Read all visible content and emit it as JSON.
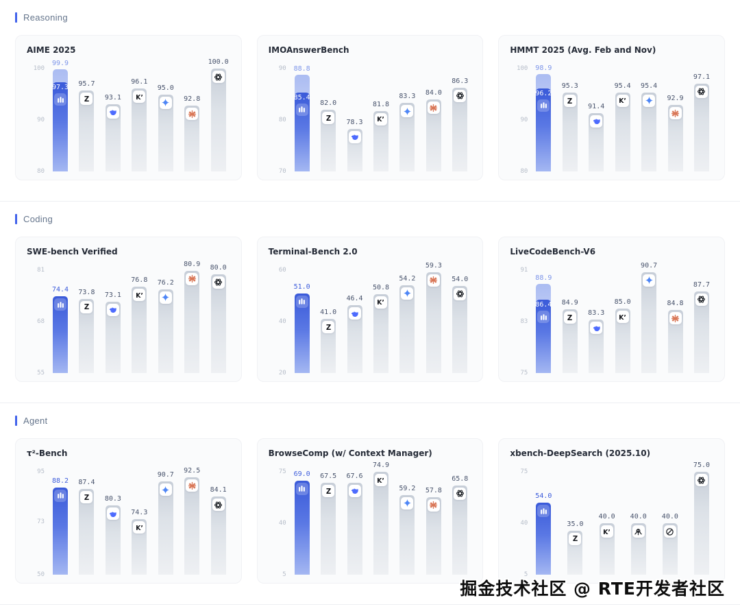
{
  "watermark": "掘金技术社区 @ RTE开发者社区",
  "colors": {
    "accent": "#4263eb",
    "highlight_bar": "#3a5ad9",
    "ghost_bar": "#7a95ec",
    "gray_bar": "#dde2e8",
    "value_text": "#47526b",
    "tick_text": "#b6bdc9",
    "claude_orange": "#d97757",
    "gemini_blue": "#4e86f6",
    "deepseek_blue": "#4d6bfe"
  },
  "sections": [
    {
      "label": "Reasoning"
    },
    {
      "label": "Coding"
    },
    {
      "label": "Agent"
    }
  ],
  "chart_data": [
    {
      "section": "Reasoning",
      "type": "bar",
      "title": "AIME 2025",
      "ylim": [
        80,
        100
      ],
      "yticks": [
        100,
        90,
        80
      ],
      "grid": false,
      "legend": "none",
      "bars": [
        {
          "icon": "primary-model-icon",
          "value": 97.3,
          "aux_value": 99.9,
          "highlight": true
        },
        {
          "icon": "glm-z-icon",
          "value": 95.7
        },
        {
          "icon": "deepseek-whale-icon",
          "value": 93.1
        },
        {
          "icon": "kimi-k-icon",
          "value": 96.1
        },
        {
          "icon": "gemini-star-icon",
          "value": 95.0
        },
        {
          "icon": "claude-burst-icon",
          "value": 92.8
        },
        {
          "icon": "openai-icon",
          "value": 100.0
        }
      ]
    },
    {
      "section": "Reasoning",
      "type": "bar",
      "title": "IMOAnswerBench",
      "ylim": [
        70,
        90
      ],
      "yticks": [
        90,
        80,
        70
      ],
      "grid": false,
      "legend": "none",
      "bars": [
        {
          "icon": "primary-model-icon",
          "value": 85.4,
          "aux_value": 88.8,
          "highlight": true
        },
        {
          "icon": "glm-z-icon",
          "value": 82.0
        },
        {
          "icon": "deepseek-whale-icon",
          "value": 78.3
        },
        {
          "icon": "kimi-k-icon",
          "value": 81.8
        },
        {
          "icon": "gemini-star-icon",
          "value": 83.3
        },
        {
          "icon": "claude-burst-icon",
          "value": 84.0
        },
        {
          "icon": "openai-icon",
          "value": 86.3
        }
      ]
    },
    {
      "section": "Reasoning",
      "type": "bar",
      "title": "HMMT 2025 (Avg. Feb and Nov)",
      "ylim": [
        80,
        100
      ],
      "yticks": [
        100,
        90,
        80
      ],
      "grid": false,
      "legend": "none",
      "bars": [
        {
          "icon": "primary-model-icon",
          "value": 96.2,
          "aux_value": 98.9,
          "highlight": true
        },
        {
          "icon": "glm-z-icon",
          "value": 95.3
        },
        {
          "icon": "deepseek-whale-icon",
          "value": 91.4
        },
        {
          "icon": "kimi-k-icon",
          "value": 95.4
        },
        {
          "icon": "gemini-star-icon",
          "value": 95.4
        },
        {
          "icon": "claude-burst-icon",
          "value": 92.9
        },
        {
          "icon": "openai-icon",
          "value": 97.1
        }
      ]
    },
    {
      "section": "Coding",
      "type": "bar",
      "title": "SWE-bench Verified",
      "ylim": [
        55,
        81
      ],
      "yticks": [
        81,
        68,
        55
      ],
      "grid": false,
      "legend": "none",
      "bars": [
        {
          "icon": "primary-model-icon",
          "value": 74.4,
          "highlight": true
        },
        {
          "icon": "glm-z-icon",
          "value": 73.8
        },
        {
          "icon": "deepseek-whale-icon",
          "value": 73.1
        },
        {
          "icon": "kimi-k-icon",
          "value": 76.8
        },
        {
          "icon": "gemini-star-icon",
          "value": 76.2
        },
        {
          "icon": "claude-burst-icon",
          "value": 80.9
        },
        {
          "icon": "openai-icon",
          "value": 80.0
        }
      ]
    },
    {
      "section": "Coding",
      "type": "bar",
      "title": "Terminal-Bench 2.0",
      "ylim": [
        20,
        60
      ],
      "yticks": [
        60,
        40,
        20
      ],
      "grid": false,
      "legend": "none",
      "bars": [
        {
          "icon": "primary-model-icon",
          "value": 51.0,
          "highlight": true
        },
        {
          "icon": "glm-z-icon",
          "value": 41.0
        },
        {
          "icon": "deepseek-whale-icon",
          "value": 46.4
        },
        {
          "icon": "kimi-k-icon",
          "value": 50.8
        },
        {
          "icon": "gemini-star-icon",
          "value": 54.2
        },
        {
          "icon": "claude-burst-icon",
          "value": 59.3
        },
        {
          "icon": "openai-icon",
          "value": 54.0
        }
      ]
    },
    {
      "section": "Coding",
      "type": "bar",
      "title": "LiveCodeBench-V6",
      "ylim": [
        75,
        91
      ],
      "yticks": [
        91,
        83,
        75
      ],
      "grid": false,
      "legend": "none",
      "bars": [
        {
          "icon": "primary-model-icon",
          "value": 86.4,
          "aux_value": 88.9,
          "highlight": true
        },
        {
          "icon": "glm-z-icon",
          "value": 84.9
        },
        {
          "icon": "deepseek-whale-icon",
          "value": 83.3
        },
        {
          "icon": "kimi-k-icon",
          "value": 85.0
        },
        {
          "icon": "gemini-star-icon",
          "value": 90.7
        },
        {
          "icon": "claude-burst-icon",
          "value": 84.8
        },
        {
          "icon": "openai-icon",
          "value": 87.7
        }
      ]
    },
    {
      "section": "Agent",
      "type": "bar",
      "title": "τ²-Bench",
      "ylim": [
        50,
        95
      ],
      "yticks": [
        95,
        73,
        50
      ],
      "grid": false,
      "legend": "none",
      "bars": [
        {
          "icon": "primary-model-icon",
          "value": 88.2,
          "highlight": true
        },
        {
          "icon": "glm-z-icon",
          "value": 87.4
        },
        {
          "icon": "deepseek-whale-icon",
          "value": 80.3
        },
        {
          "icon": "kimi-k-icon",
          "value": 74.3
        },
        {
          "icon": "gemini-star-icon",
          "value": 90.7
        },
        {
          "icon": "claude-burst-icon",
          "value": 92.5
        },
        {
          "icon": "openai-icon",
          "value": 84.1
        }
      ]
    },
    {
      "section": "Agent",
      "type": "bar",
      "title": "BrowseComp (w/ Context Manager)",
      "ylim": [
        5,
        75
      ],
      "yticks": [
        75,
        40,
        5
      ],
      "grid": false,
      "legend": "none",
      "bars": [
        {
          "icon": "primary-model-icon",
          "value": 69.0,
          "highlight": true
        },
        {
          "icon": "glm-z-icon",
          "value": 67.5
        },
        {
          "icon": "deepseek-whale-icon",
          "value": 67.6
        },
        {
          "icon": "kimi-k-icon",
          "value": 74.9
        },
        {
          "icon": "gemini-star-icon",
          "value": 59.2
        },
        {
          "icon": "claude-burst-icon",
          "value": 57.8
        },
        {
          "icon": "openai-icon",
          "value": 65.8
        }
      ]
    },
    {
      "section": "Agent",
      "type": "bar",
      "title": "xbench-DeepSearch (2025.10)",
      "ylim": [
        5,
        75
      ],
      "yticks": [
        75,
        40,
        5
      ],
      "grid": false,
      "legend": "none",
      "bars": [
        {
          "icon": "primary-model-icon",
          "value": 54.0,
          "highlight": true
        },
        {
          "icon": "glm-z-icon",
          "value": 35.0
        },
        {
          "icon": "kimi-k-icon",
          "value": 40.0
        },
        {
          "icon": "octopus-icon",
          "value": 40.0
        },
        {
          "icon": "slashed-circle-icon",
          "value": 40.0
        },
        {
          "icon": "openai-icon",
          "value": 75.0
        }
      ]
    }
  ]
}
